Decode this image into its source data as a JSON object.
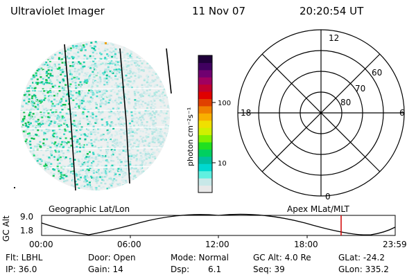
{
  "header": {
    "title": "Ultraviolet Imager",
    "date": "11 Nov 07",
    "time": "20:20:54 UT"
  },
  "colorbar": {
    "label": "photon cm⁻²s⁻¹",
    "ticks": [
      "100",
      "10"
    ],
    "colors": [
      "#e8e8e8",
      "#c8e8e8",
      "#60f0e0",
      "#00d8d0",
      "#00c0a0",
      "#00d060",
      "#20e020",
      "#80f000",
      "#d0f000",
      "#f0e000",
      "#f8b000",
      "#f08000",
      "#e04000",
      "#e00000",
      "#c00030",
      "#a00060",
      "#700070",
      "#400060",
      "#20003a"
    ]
  },
  "imager_panel": {
    "caption": "Geographic Lat/Lon"
  },
  "polar_panel": {
    "caption": "Apex MLat/MLT",
    "mlt_labels": {
      "top": "12",
      "left": "18",
      "right": "6",
      "bottom": "0"
    },
    "lat_labels": [
      "60",
      "70",
      "80"
    ]
  },
  "altitude_strip": {
    "ylabel": "GC Alt",
    "yticks": [
      "9.0",
      "1.8"
    ],
    "xticks": [
      "00:00",
      "06:00",
      "12:00",
      "18:00",
      "23:59"
    ],
    "current_marker_color": "#d00000"
  },
  "info": {
    "flt": "Flt: LBHL",
    "ip": "IP: 36.0",
    "door": "Door: Open",
    "gain": "Gain: 14",
    "mode": "Mode: Normal",
    "dsp_label": "Dsp:",
    "dsp_value": "6.1",
    "gc_alt": "GC Alt: 4.0 Re",
    "seq": "Seq: 39",
    "glat": "GLat: -24.2",
    "glon": "GLon: 335.2"
  }
}
